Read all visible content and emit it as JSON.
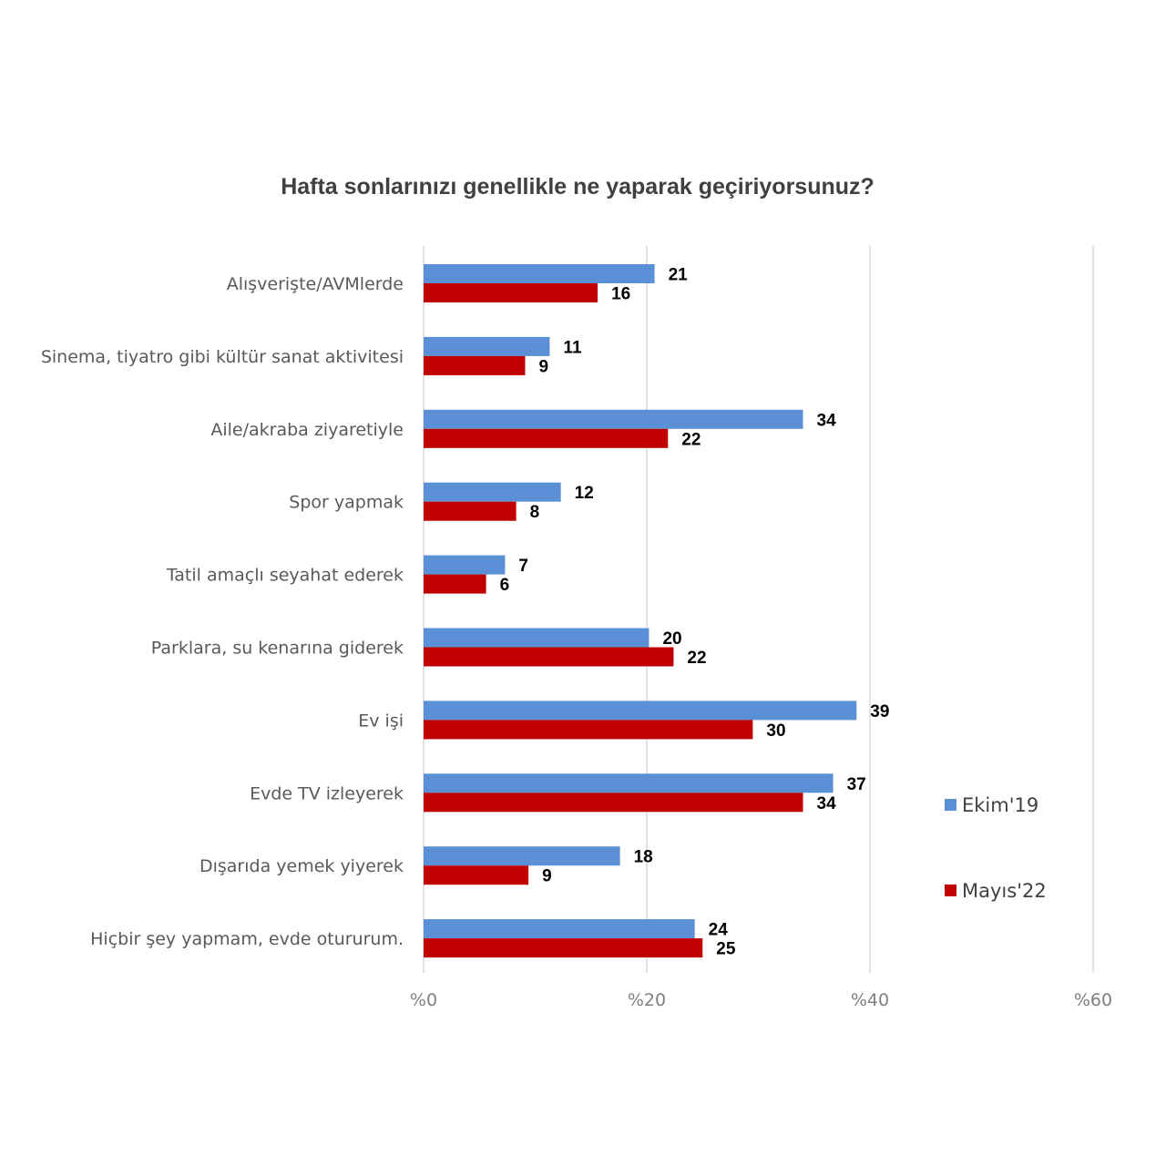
{
  "chart_data": {
    "type": "bar",
    "orientation": "horizontal",
    "title": "Hafta sonlarınızı genellikle ne yaparak geçiriyorsunuz?",
    "categories": [
      "Alışverişte/AVMlerde",
      "Sinema, tiyatro gibi kültür sanat aktivitesi",
      "Aile/akraba ziyaretiyle",
      "Spor yapmak",
      "Tatil amaçlı seyahat ederek",
      "Parklara, su kenarına giderek",
      "Ev işi",
      "Evde TV izleyerek",
      "Dışarıda yemek yiyerek",
      "Hiçbir şey yapmam, evde otururum."
    ],
    "series": [
      {
        "name": "Ekim'19",
        "color": "#5b8fd6",
        "values": [
          21,
          11,
          34,
          12,
          7,
          20,
          39,
          37,
          18,
          24
        ],
        "bar_values": [
          20.7,
          11.3,
          34.0,
          12.3,
          7.3,
          20.2,
          38.8,
          36.7,
          17.6,
          24.3
        ]
      },
      {
        "name": "Mayıs'22",
        "color": "#c00000",
        "values": [
          16,
          9,
          22,
          8,
          6,
          22,
          30,
          34,
          9,
          25
        ],
        "bar_values": [
          15.6,
          9.1,
          21.9,
          8.3,
          5.6,
          22.4,
          29.5,
          34.0,
          9.4,
          25.0
        ]
      }
    ],
    "xlim": [
      0,
      60
    ],
    "xticks": [
      0,
      20,
      40,
      60
    ],
    "xtick_labels": [
      "%0",
      "%20",
      "%40",
      "%60"
    ],
    "grid": true,
    "legend_position": "right"
  }
}
